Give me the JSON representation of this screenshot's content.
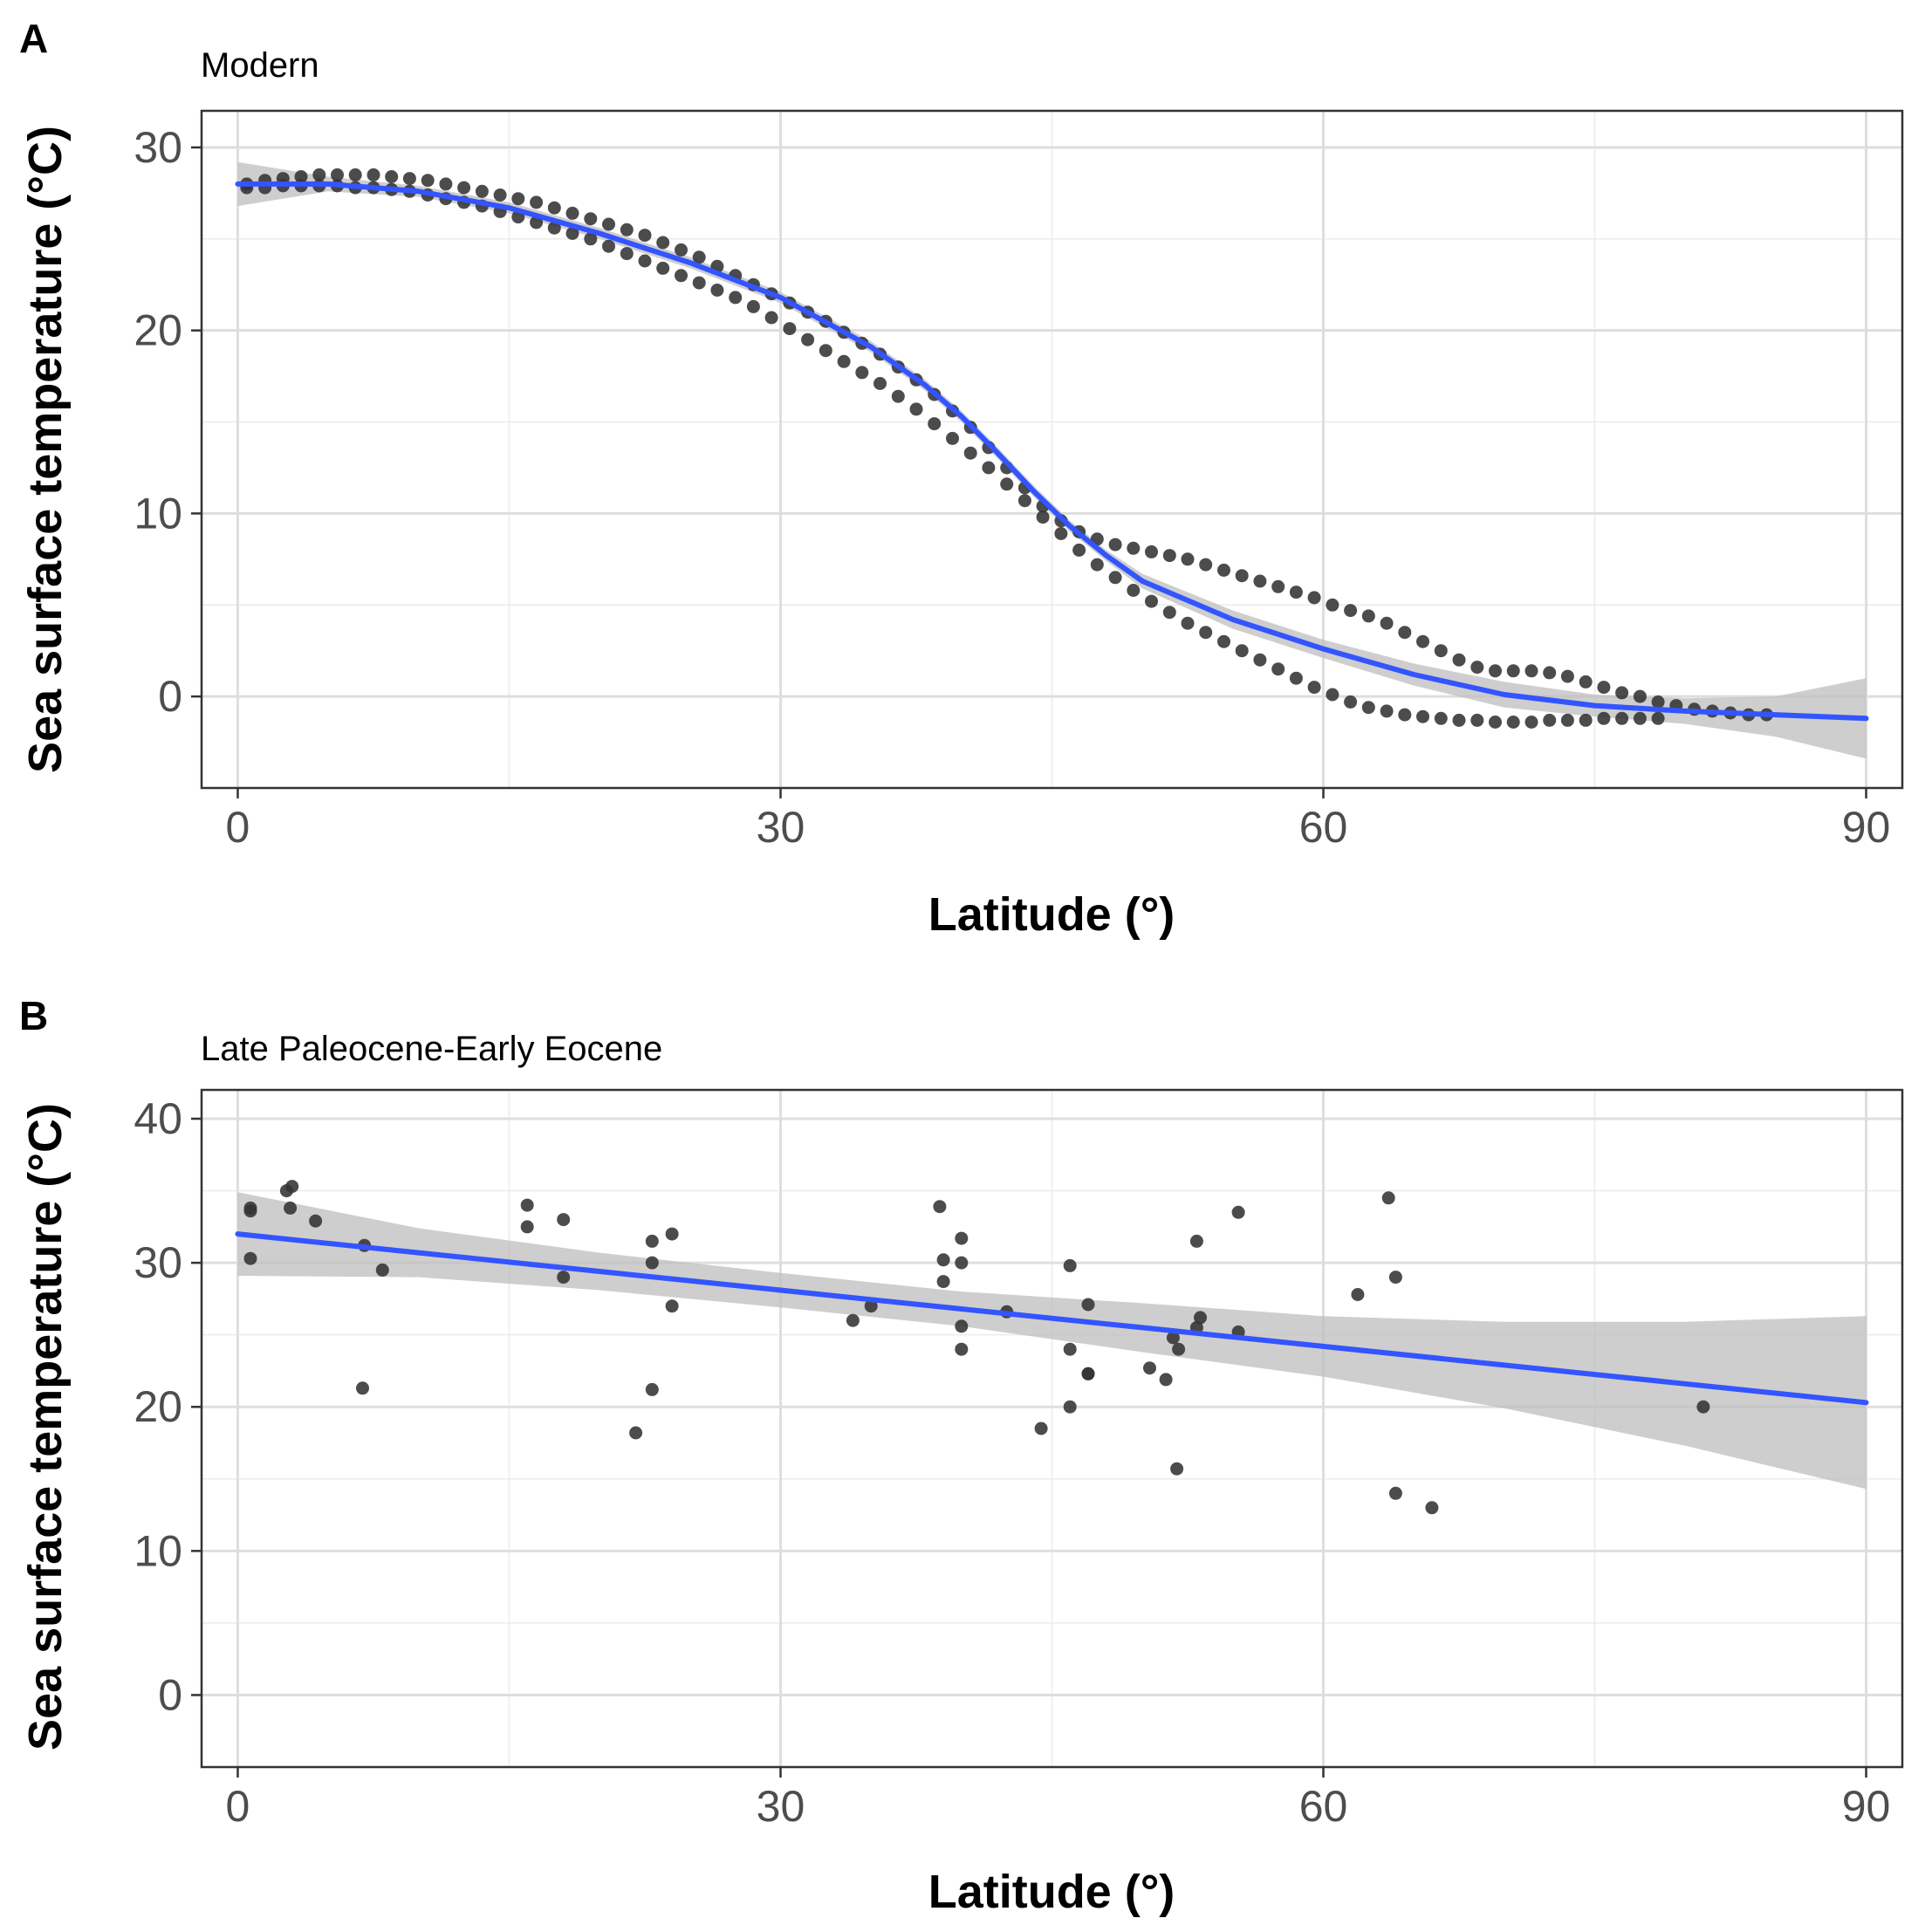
{
  "chart_data": [
    {
      "type": "scatter",
      "panel_label": "A",
      "title": "Modern",
      "xlabel": "Latitude (°)",
      "ylabel": "Sea surface temperature (°C)",
      "xlim": [
        -2,
        92
      ],
      "ylim": [
        -5,
        32
      ],
      "xticks": [
        0,
        30,
        60,
        90
      ],
      "xtick_labels": [
        "0",
        "30",
        "60",
        "90"
      ],
      "yticks": [
        0,
        10,
        20,
        30
      ],
      "ytick_labels": [
        "0",
        "10",
        "20",
        "30"
      ],
      "grid": true,
      "colors": {
        "points": "#333333",
        "fit_line": "#3355ff",
        "confidence_band": "#bdbdbd"
      },
      "series": [
        {
          "kind": "points",
          "x": [
            0.5,
            1.5,
            2.5,
            3.5,
            4.5,
            5.5,
            6.5,
            7.5,
            8.5,
            9.5,
            10.5,
            11.5,
            12.5,
            13.5,
            14.5,
            15.5,
            16.5,
            17.5,
            18.5,
            19.5,
            20.5,
            21.5,
            22.5,
            23.5,
            24.5,
            25.5,
            26.5,
            27.5,
            28.5,
            29.5,
            30.5,
            31.5,
            32.5,
            33.5,
            34.5,
            35.5,
            36.5,
            37.5,
            38.5,
            39.5,
            40.5,
            41.5,
            42.5,
            43.5,
            44.5,
            45.5,
            46.5,
            47.5,
            48.5,
            49.5,
            50.5,
            51.5,
            52.5,
            53.5,
            54.5,
            55.5,
            56.5,
            57.5,
            58.5,
            59.5,
            60.5,
            61.5,
            62.5,
            63.5,
            64.5,
            65.5,
            66.5,
            67.5,
            68.5,
            69.5,
            70.5,
            71.5,
            72.5,
            73.5,
            74.5,
            75.5,
            76.5,
            77.5,
            78.5,
            0.5,
            1.5,
            2.5,
            3.5,
            4.5,
            5.5,
            6.5,
            7.5,
            8.5,
            9.5,
            10.5,
            11.5,
            12.5,
            13.5,
            14.5,
            15.5,
            16.5,
            17.5,
            18.5,
            19.5,
            20.5,
            21.5,
            22.5,
            23.5,
            24.5,
            25.5,
            26.5,
            27.5,
            28.5,
            29.5,
            30.5,
            31.5,
            32.5,
            33.5,
            34.5,
            35.5,
            36.5,
            37.5,
            38.5,
            39.5,
            40.5,
            41.5,
            42.5,
            43.5,
            44.5,
            45.5,
            46.5,
            47.5,
            48.5,
            49.5,
            50.5,
            51.5,
            52.5,
            53.5,
            54.5,
            55.5,
            56.5,
            57.5,
            58.5,
            59.5,
            60.5,
            61.5,
            62.5,
            63.5,
            64.5,
            65.5,
            66.5,
            67.5,
            68.5,
            69.5,
            70.5,
            71.5,
            72.5,
            73.5,
            74.5,
            75.5,
            76.5,
            77.5,
            78.5,
            79.5,
            80.5,
            81.5,
            82.5,
            83.5,
            84.5
          ],
          "y": [
            27.8,
            27.8,
            27.9,
            27.9,
            27.9,
            27.9,
            27.8,
            27.8,
            27.7,
            27.6,
            27.4,
            27.2,
            27.0,
            26.8,
            26.5,
            26.2,
            25.9,
            25.6,
            25.3,
            25.0,
            24.6,
            24.2,
            23.8,
            23.4,
            23.0,
            22.6,
            22.2,
            21.8,
            21.3,
            20.7,
            20.1,
            19.5,
            18.9,
            18.3,
            17.7,
            17.1,
            16.4,
            15.7,
            14.9,
            14.1,
            13.3,
            12.5,
            11.6,
            10.7,
            9.8,
            8.9,
            8.0,
            7.2,
            6.5,
            5.8,
            5.2,
            4.6,
            4.0,
            3.5,
            3.0,
            2.5,
            2.0,
            1.5,
            1.0,
            0.5,
            0.1,
            -0.3,
            -0.6,
            -0.8,
            -1.0,
            -1.1,
            -1.2,
            -1.3,
            -1.3,
            -1.4,
            -1.4,
            -1.4,
            -1.3,
            -1.3,
            -1.3,
            -1.2,
            -1.2,
            -1.2,
            -1.2,
            28.0,
            28.2,
            28.3,
            28.4,
            28.5,
            28.5,
            28.5,
            28.5,
            28.4,
            28.3,
            28.2,
            28.0,
            27.8,
            27.6,
            27.4,
            27.2,
            27.0,
            26.7,
            26.4,
            26.1,
            25.8,
            25.5,
            25.2,
            24.8,
            24.4,
            24.0,
            23.5,
            23.0,
            22.5,
            22.0,
            21.5,
            21.0,
            20.5,
            19.9,
            19.3,
            18.7,
            18.0,
            17.3,
            16.5,
            15.6,
            14.7,
            13.6,
            12.5,
            11.4,
            10.4,
            9.6,
            9.0,
            8.6,
            8.3,
            8.1,
            7.9,
            7.7,
            7.5,
            7.2,
            6.9,
            6.6,
            6.3,
            6.0,
            5.7,
            5.4,
            5.0,
            4.7,
            4.4,
            4.0,
            3.5,
            3.0,
            2.5,
            2.0,
            1.6,
            1.4,
            1.4,
            1.4,
            1.3,
            1.1,
            0.8,
            0.5,
            0.2,
            0.0,
            -0.3,
            -0.5,
            -0.7,
            -0.8,
            -0.9,
            -1.0,
            -1.0
          ]
        },
        {
          "kind": "smooth",
          "x": [
            0,
            5,
            10,
            15,
            20,
            25,
            30,
            35,
            38,
            40,
            42,
            44,
            46,
            48,
            50,
            55,
            60,
            65,
            70,
            75,
            80,
            85,
            90
          ],
          "y": [
            28.0,
            28.0,
            27.6,
            26.7,
            25.3,
            23.7,
            21.8,
            19.1,
            17.0,
            15.3,
            13.3,
            11.2,
            9.3,
            7.7,
            6.3,
            4.2,
            2.6,
            1.2,
            0.1,
            -0.5,
            -0.8,
            -1.0,
            -1.2
          ],
          "ci_upper": [
            29.2,
            28.4,
            27.9,
            27.0,
            25.6,
            24.0,
            22.1,
            19.4,
            17.3,
            15.6,
            13.6,
            11.5,
            9.6,
            8.0,
            6.7,
            4.7,
            3.1,
            1.8,
            0.8,
            0.1,
            -0.1,
            0.0,
            1.0
          ],
          "ci_lower": [
            26.8,
            27.6,
            27.3,
            26.4,
            25.0,
            23.4,
            21.5,
            18.8,
            16.7,
            15.0,
            13.0,
            10.9,
            9.0,
            7.4,
            5.9,
            3.7,
            2.1,
            0.6,
            -0.6,
            -1.1,
            -1.5,
            -2.2,
            -3.4
          ]
        }
      ]
    },
    {
      "type": "scatter",
      "panel_label": "B",
      "title": "Late Paleocene-Early Eocene",
      "xlabel": "Latitude (°)",
      "ylabel": "Sea surface temperature (°C)",
      "xlim": [
        -2,
        92
      ],
      "ylim": [
        -5,
        42
      ],
      "xticks": [
        0,
        30,
        60,
        90
      ],
      "xtick_labels": [
        "0",
        "30",
        "60",
        "90"
      ],
      "yticks": [
        0,
        10,
        20,
        30,
        40
      ],
      "ytick_labels": [
        "0",
        "10",
        "20",
        "30",
        "40"
      ],
      "grid": true,
      "colors": {
        "points": "#333333",
        "fit_line": "#3355ff",
        "confidence_band": "#bdbdbd"
      },
      "series": [
        {
          "kind": "points",
          "x": [
            0.7,
            0.7,
            0.7,
            2.7,
            3.0,
            2.9,
            4.3,
            7.0,
            8.0,
            6.9,
            16.0,
            16.0,
            18.0,
            18.0,
            22.9,
            22.9,
            24.0,
            24.0,
            22.9,
            22.0,
            34.0,
            35.0,
            38.8,
            39.0,
            39.0,
            40.0,
            40.0,
            40.0,
            40.0,
            42.5,
            44.4,
            46.0,
            46.0,
            46.0,
            47.0,
            47.0,
            47.0,
            50.4,
            51.3,
            51.7,
            52.0,
            51.9,
            53.0,
            53.2,
            53.0,
            55.3,
            55.3,
            61.9,
            63.6,
            64.0,
            64.0,
            66.0,
            81.0
          ],
          "y": [
            33.8,
            33.6,
            30.3,
            35.0,
            35.3,
            33.8,
            32.9,
            31.2,
            29.5,
            21.3,
            34.0,
            32.5,
            33.0,
            29.0,
            31.5,
            30.0,
            32.0,
            27.0,
            21.2,
            18.2,
            26.0,
            27.0,
            33.9,
            30.2,
            28.7,
            31.7,
            30.0,
            25.6,
            24.0,
            26.6,
            18.5,
            29.8,
            24.0,
            20.0,
            27.1,
            22.3,
            22.3,
            22.7,
            21.9,
            24.8,
            24.0,
            15.7,
            25.5,
            26.2,
            31.5,
            33.5,
            25.2,
            27.8,
            34.5,
            29.0,
            14.0,
            13.0,
            20.0
          ]
        },
        {
          "kind": "smooth",
          "x": [
            0,
            10,
            20,
            30,
            40,
            50,
            60,
            70,
            80,
            90
          ],
          "y": [
            32.0,
            30.7,
            29.4,
            28.1,
            26.8,
            25.5,
            24.2,
            22.9,
            21.6,
            20.3
          ],
          "ci_upper": [
            34.9,
            32.4,
            30.7,
            29.3,
            28.0,
            27.2,
            26.3,
            25.9,
            25.9,
            26.3
          ],
          "ci_lower": [
            29.1,
            29.0,
            28.1,
            26.9,
            25.6,
            23.8,
            22.1,
            19.9,
            17.3,
            14.3
          ]
        }
      ]
    }
  ]
}
